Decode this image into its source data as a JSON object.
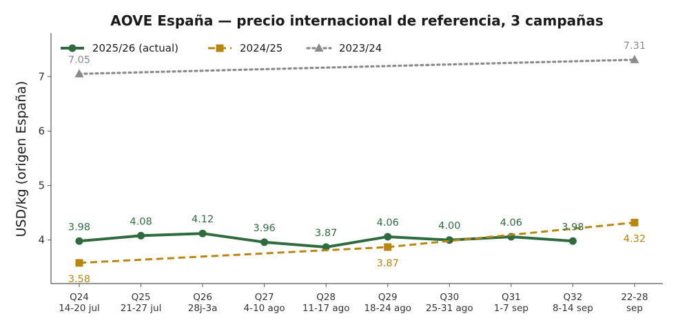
{
  "chart_data": {
    "type": "line",
    "title": "AOVE España — precio internacional de referencia, 3 campañas",
    "xlabel": "",
    "ylabel": "USD/kg (origen España)",
    "ylim": [
      3.2,
      7.8
    ],
    "yticks": [
      4,
      5,
      6,
      7
    ],
    "grid": false,
    "legend_position": "top-left",
    "categories": [
      [
        "Q24",
        "14-20 jul"
      ],
      [
        "Q25",
        "21-27 jul"
      ],
      [
        "Q26",
        "28j-3a"
      ],
      [
        "Q27",
        "4-10 ago"
      ],
      [
        "Q28",
        "11-17 ago"
      ],
      [
        "Q29",
        "18-24 ago"
      ],
      [
        "Q30",
        "25-31 ago"
      ],
      [
        "Q31",
        "1-7 sep"
      ],
      [
        "Q32",
        "8-14 sep"
      ],
      [
        "22-28",
        "sep"
      ]
    ],
    "series": [
      {
        "name": "2025/26 (actual)",
        "color": "#2e6b3e",
        "style": "solid",
        "marker": "circle",
        "points": [
          {
            "i": 0,
            "y": 3.98,
            "label": "3.98"
          },
          {
            "i": 1,
            "y": 4.08,
            "label": "4.08"
          },
          {
            "i": 2,
            "y": 4.12,
            "label": "4.12"
          },
          {
            "i": 3,
            "y": 3.96,
            "label": "3.96"
          },
          {
            "i": 4,
            "y": 3.87,
            "label": "3.87"
          },
          {
            "i": 5,
            "y": 4.06,
            "label": "4.06"
          },
          {
            "i": 6,
            "y": 4.0,
            "label": "4.00"
          },
          {
            "i": 7,
            "y": 4.06,
            "label": "4.06"
          },
          {
            "i": 8,
            "y": 3.98,
            "label": "3.98"
          }
        ]
      },
      {
        "name": "2024/25",
        "color": "#b8860b",
        "style": "dashed",
        "marker": "square",
        "points": [
          {
            "i": 0,
            "y": 3.58,
            "label": "3.58"
          },
          {
            "i": 5,
            "y": 3.87,
            "label": "3.87"
          },
          {
            "i": 9,
            "y": 4.32,
            "label": "4.32"
          }
        ]
      },
      {
        "name": "2023/24",
        "color": "#8a8a8a",
        "style": "dotted",
        "marker": "triangle",
        "points": [
          {
            "i": 0,
            "y": 7.05,
            "label": "7.05"
          },
          {
            "i": 9,
            "y": 7.31,
            "label": "7.31"
          }
        ]
      }
    ]
  }
}
